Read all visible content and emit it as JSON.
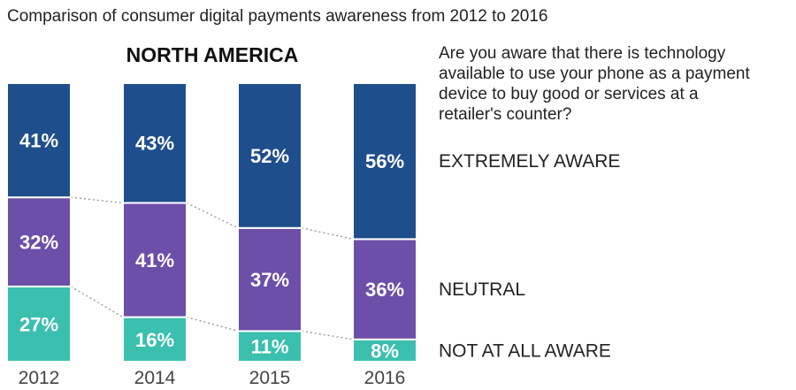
{
  "colors": {
    "extremely_aware": "#1f4e8c",
    "neutral": "#6b4fa8",
    "not_at_all_aware": "#3bbfae",
    "text": "#222222",
    "tick": "#444444",
    "connector": "#999999"
  },
  "chart_data": {
    "type": "bar",
    "stacked": true,
    "title": "Comparison of consumer digital payments awareness from 2012 to 2016",
    "subtitle": "NORTH AMERICA",
    "question": [
      "Are you aware that there is technology",
      "available to use your phone as a payment",
      "device to buy good or services at a",
      "retailer's counter?"
    ],
    "categories": [
      "2012",
      "2014",
      "2015",
      "2016"
    ],
    "series": [
      {
        "name": "NOT AT ALL AWARE",
        "key": "not_at_all_aware",
        "values": [
          27,
          16,
          11,
          8
        ]
      },
      {
        "name": "NEUTRAL",
        "key": "neutral",
        "values": [
          32,
          41,
          37,
          36
        ]
      },
      {
        "name": "EXTREMELY AWARE",
        "key": "extremely_aware",
        "values": [
          41,
          43,
          52,
          56
        ]
      }
    ],
    "value_suffix": "%",
    "ylim": [
      0,
      100
    ],
    "legend_placement": "right",
    "grid": false
  }
}
